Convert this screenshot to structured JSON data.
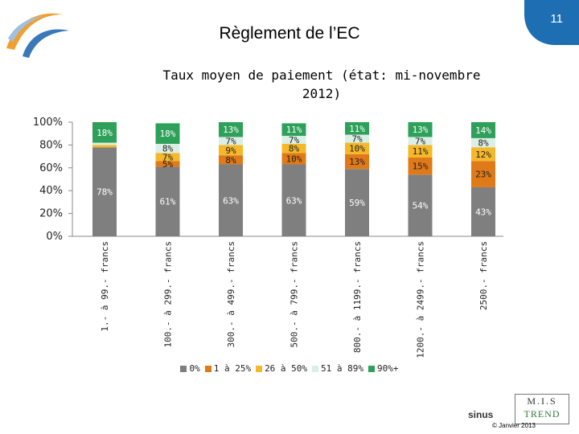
{
  "header": {
    "title": "Règlement de l’EC",
    "page_number": "11"
  },
  "colors": {
    "accent": "#1E6EB4",
    "logo_orange": "#F0A030",
    "logo_blue": "#3A78B8"
  },
  "footer": {
    "brand": "sinus",
    "mis_top": "M.I.S",
    "mis_bottom": "TREND",
    "copyright": "© Janvier 2013"
  },
  "chart_data": {
    "type": "bar",
    "stacked": true,
    "title": "Taux moyen de paiement (état: mi-novembre 2012)",
    "title_lines": [
      "Taux moyen de paiement (état: mi-novembre",
      "2012)"
    ],
    "categories": [
      "1.- à 99.- francs",
      "100.- à 299.- francs",
      "300.- à 499.- francs",
      "500.- à 799.- francs",
      "800.- à 1199.- francs",
      "1200.- à 2499.- francs",
      "2500.- francs"
    ],
    "ylim": [
      0,
      100
    ],
    "yticks": [
      "0%",
      "20%",
      "40%",
      "60%",
      "80%",
      "100%"
    ],
    "grid": false,
    "legend_position": "bottom",
    "series": [
      {
        "name": "0%",
        "color": "#7F7F7F",
        "values": [
          78,
          61,
          63,
          63,
          59,
          54,
          43
        ],
        "labels": [
          "78%",
          "61%",
          "63%",
          "63%",
          "59%",
          "54%",
          "43%"
        ]
      },
      {
        "name": "1 à 25%",
        "color": "#E07A18",
        "values": [
          0,
          5,
          8,
          10,
          13,
          15,
          23
        ],
        "labels": [
          "",
          "5%",
          "8%",
          "10%",
          "13%",
          "15%",
          "23%"
        ]
      },
      {
        "name": "26 à 50%",
        "color": "#F5B82A",
        "values": [
          2,
          7,
          9,
          8,
          10,
          11,
          12
        ],
        "labels": [
          "",
          "7%",
          "9%",
          "8%",
          "10%",
          "11%",
          "12%"
        ]
      },
      {
        "name": "51 à 89%",
        "color": "#DCEFE6",
        "values": [
          2,
          8,
          7,
          7,
          7,
          7,
          8
        ],
        "labels": [
          "",
          "8%",
          "7%",
          "7%",
          "7%",
          "7%",
          "8%"
        ]
      },
      {
        "name": "90%+",
        "color": "#2EA05A",
        "values": [
          18,
          18,
          13,
          11,
          11,
          13,
          14
        ],
        "labels": [
          "18%",
          "18%",
          "13%",
          "11%",
          "11%",
          "13%",
          "14%"
        ]
      }
    ]
  }
}
